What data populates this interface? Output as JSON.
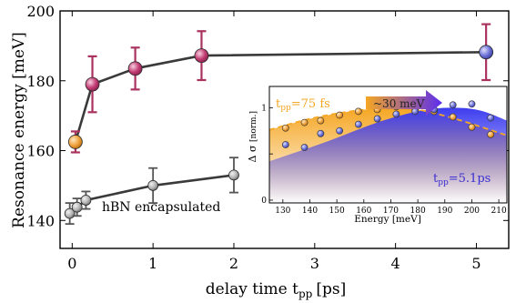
{
  "colors": {
    "axis": "#000000",
    "line_main": "#3a3a3a",
    "point_pink": "#c23b72",
    "errorbar_pink": "#a9325f",
    "point_orange": "#f0a23c",
    "point_blue": "#6d72d8",
    "point_gray": "#b4b4b4",
    "inset_orange": "#f5a623",
    "inset_blue": "#3d3df0"
  },
  "chart_data": [
    {
      "type": "line",
      "xlabel_main": "delay time t",
      "xlabel_sub": "pp",
      "xlabel_unit": "[ps]",
      "ylabel": "Resonance energy [meV]",
      "xlim": [
        -0.15,
        5.4
      ],
      "ylim": [
        132,
        200
      ],
      "xticks": [
        0,
        1,
        2,
        3,
        4,
        5
      ],
      "yticks": [
        140,
        160,
        180,
        200
      ],
      "xtick_labels": [
        "0",
        "1",
        "2",
        "3",
        "4",
        "5"
      ],
      "ytick_labels": [
        "140",
        "160",
        "180",
        "200"
      ],
      "annotation": "hBN encapsulated",
      "series": [
        {
          "points": [
            {
              "x": 0.04,
              "y": 162.5,
              "err": 3,
              "color": "orange"
            },
            {
              "x": 0.25,
              "y": 179,
              "err": 8,
              "color": "pink"
            },
            {
              "x": 0.78,
              "y": 183.5,
              "err": 6,
              "color": "pink"
            },
            {
              "x": 1.6,
              "y": 187.2,
              "err": 7,
              "color": "pink"
            },
            {
              "x": 5.12,
              "y": 188.2,
              "err": 8,
              "color": "blue"
            }
          ]
        },
        {
          "points": [
            {
              "x": -0.03,
              "y": 142,
              "err": 3
            },
            {
              "x": 0.06,
              "y": 143.8,
              "err": 2.5
            },
            {
              "x": 0.17,
              "y": 145.8,
              "err": 2.5
            },
            {
              "x": 1.0,
              "y": 150,
              "err": 5
            },
            {
              "x": 2.0,
              "y": 153,
              "err": 5
            }
          ]
        }
      ]
    },
    {
      "type": "scatter",
      "xlabel": "Energy [meV]",
      "ylabel": "Δ σ",
      "ylabel_unit": "[norm.]",
      "xlim": [
        125,
        213
      ],
      "ylim": [
        -0.03,
        1.23
      ],
      "xticks": [
        130,
        140,
        150,
        160,
        170,
        180,
        190,
        200,
        210
      ],
      "xtick_labels": [
        "130",
        "140",
        "150",
        "160",
        "170",
        "180",
        "190",
        "200",
        "210"
      ],
      "yticks": [
        0,
        0.5,
        1
      ],
      "ytick_labels": [
        "0",
        "",
        "1"
      ],
      "label_short_main": "t",
      "label_short_sub": "pp",
      "label_short_value": "=75 fs",
      "label_long_main": "t",
      "label_long_sub": "pp",
      "label_long_value": "=5.1ps",
      "arrow_label": "~30 meV",
      "series": [
        {
          "color": "orange",
          "x": [
            131,
            138,
            144,
            151,
            158,
            165,
            172,
            179,
            186,
            193,
            200,
            207
          ],
          "y": [
            0.78,
            0.84,
            0.86,
            0.92,
            0.96,
            0.98,
            1.01,
            0.99,
            0.96,
            0.9,
            0.79,
            0.71
          ],
          "fit_x": [
            125,
            140,
            155,
            170,
            180,
            195,
            213
          ],
          "fit_y": [
            0.76,
            0.88,
            0.96,
            1.0,
            0.98,
            0.87,
            0.7
          ]
        },
        {
          "color": "blue",
          "x": [
            131,
            138,
            144,
            151,
            158,
            165,
            172,
            179,
            186,
            193,
            200,
            207
          ],
          "y": [
            0.6,
            0.57,
            0.72,
            0.75,
            0.82,
            0.88,
            0.93,
            0.96,
            0.98,
            1.03,
            1.04,
            0.89
          ],
          "fit_x": [
            125,
            145,
            165,
            180,
            192,
            203,
            213
          ],
          "fit_y": [
            0.42,
            0.62,
            0.84,
            0.96,
            1.0,
            0.97,
            0.86
          ]
        }
      ]
    }
  ]
}
